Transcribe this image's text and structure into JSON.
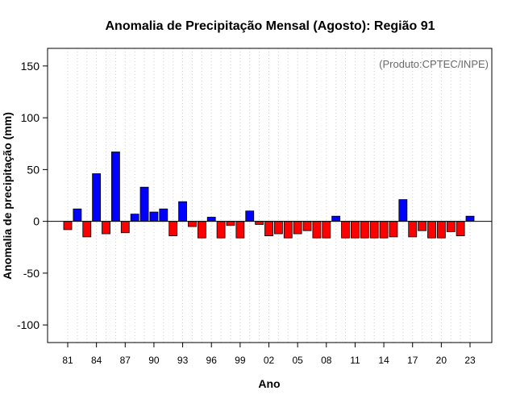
{
  "chart_data": {
    "type": "bar",
    "title": "Anomalia de Precipitação Mensal (Agosto): Região 91",
    "xlabel": "Ano",
    "ylabel": "Anomalia de precipitação (mm)",
    "annotation": "(Produto:CPTEC/INPE)",
    "ylim": [
      -117,
      167
    ],
    "yticks": [
      -100,
      -50,
      0,
      50,
      100,
      150
    ],
    "ytick_labels": [
      "-100",
      "-50",
      "0",
      "50",
      "100",
      "150"
    ],
    "xtick_labels": [
      "81",
      "84",
      "87",
      "90",
      "93",
      "96",
      "99",
      "02",
      "05",
      "08",
      "11",
      "14",
      "17",
      "20",
      "23"
    ],
    "xtick_years": [
      1981,
      1984,
      1987,
      1990,
      1993,
      1996,
      1999,
      2002,
      2005,
      2008,
      2011,
      2014,
      2017,
      2020,
      2023
    ],
    "grid": "vertical dotted",
    "colors": {
      "positive": "#0000ff",
      "negative": "#ff0000",
      "outline": "#000000",
      "grid": "#cccccc"
    },
    "categories": [
      1981,
      1982,
      1983,
      1984,
      1985,
      1986,
      1987,
      1988,
      1989,
      1990,
      1991,
      1992,
      1993,
      1994,
      1995,
      1996,
      1997,
      1998,
      1999,
      2000,
      2001,
      2002,
      2003,
      2004,
      2005,
      2006,
      2007,
      2008,
      2009,
      2010,
      2011,
      2012,
      2013,
      2014,
      2015,
      2016,
      2017,
      2018,
      2019,
      2020,
      2021,
      2022,
      2023
    ],
    "values": [
      -8,
      12,
      -15,
      46,
      -12,
      67,
      -11,
      7,
      33,
      9,
      12,
      -14,
      19,
      -5,
      -16,
      4,
      -16,
      -4,
      -16,
      10,
      -3,
      -14,
      -12,
      -16,
      -12,
      -9,
      -16,
      -16,
      5,
      -16,
      -16,
      -16,
      -16,
      -16,
      -15,
      21,
      -15,
      -9,
      -16,
      -16,
      -10,
      -14,
      5
    ]
  }
}
